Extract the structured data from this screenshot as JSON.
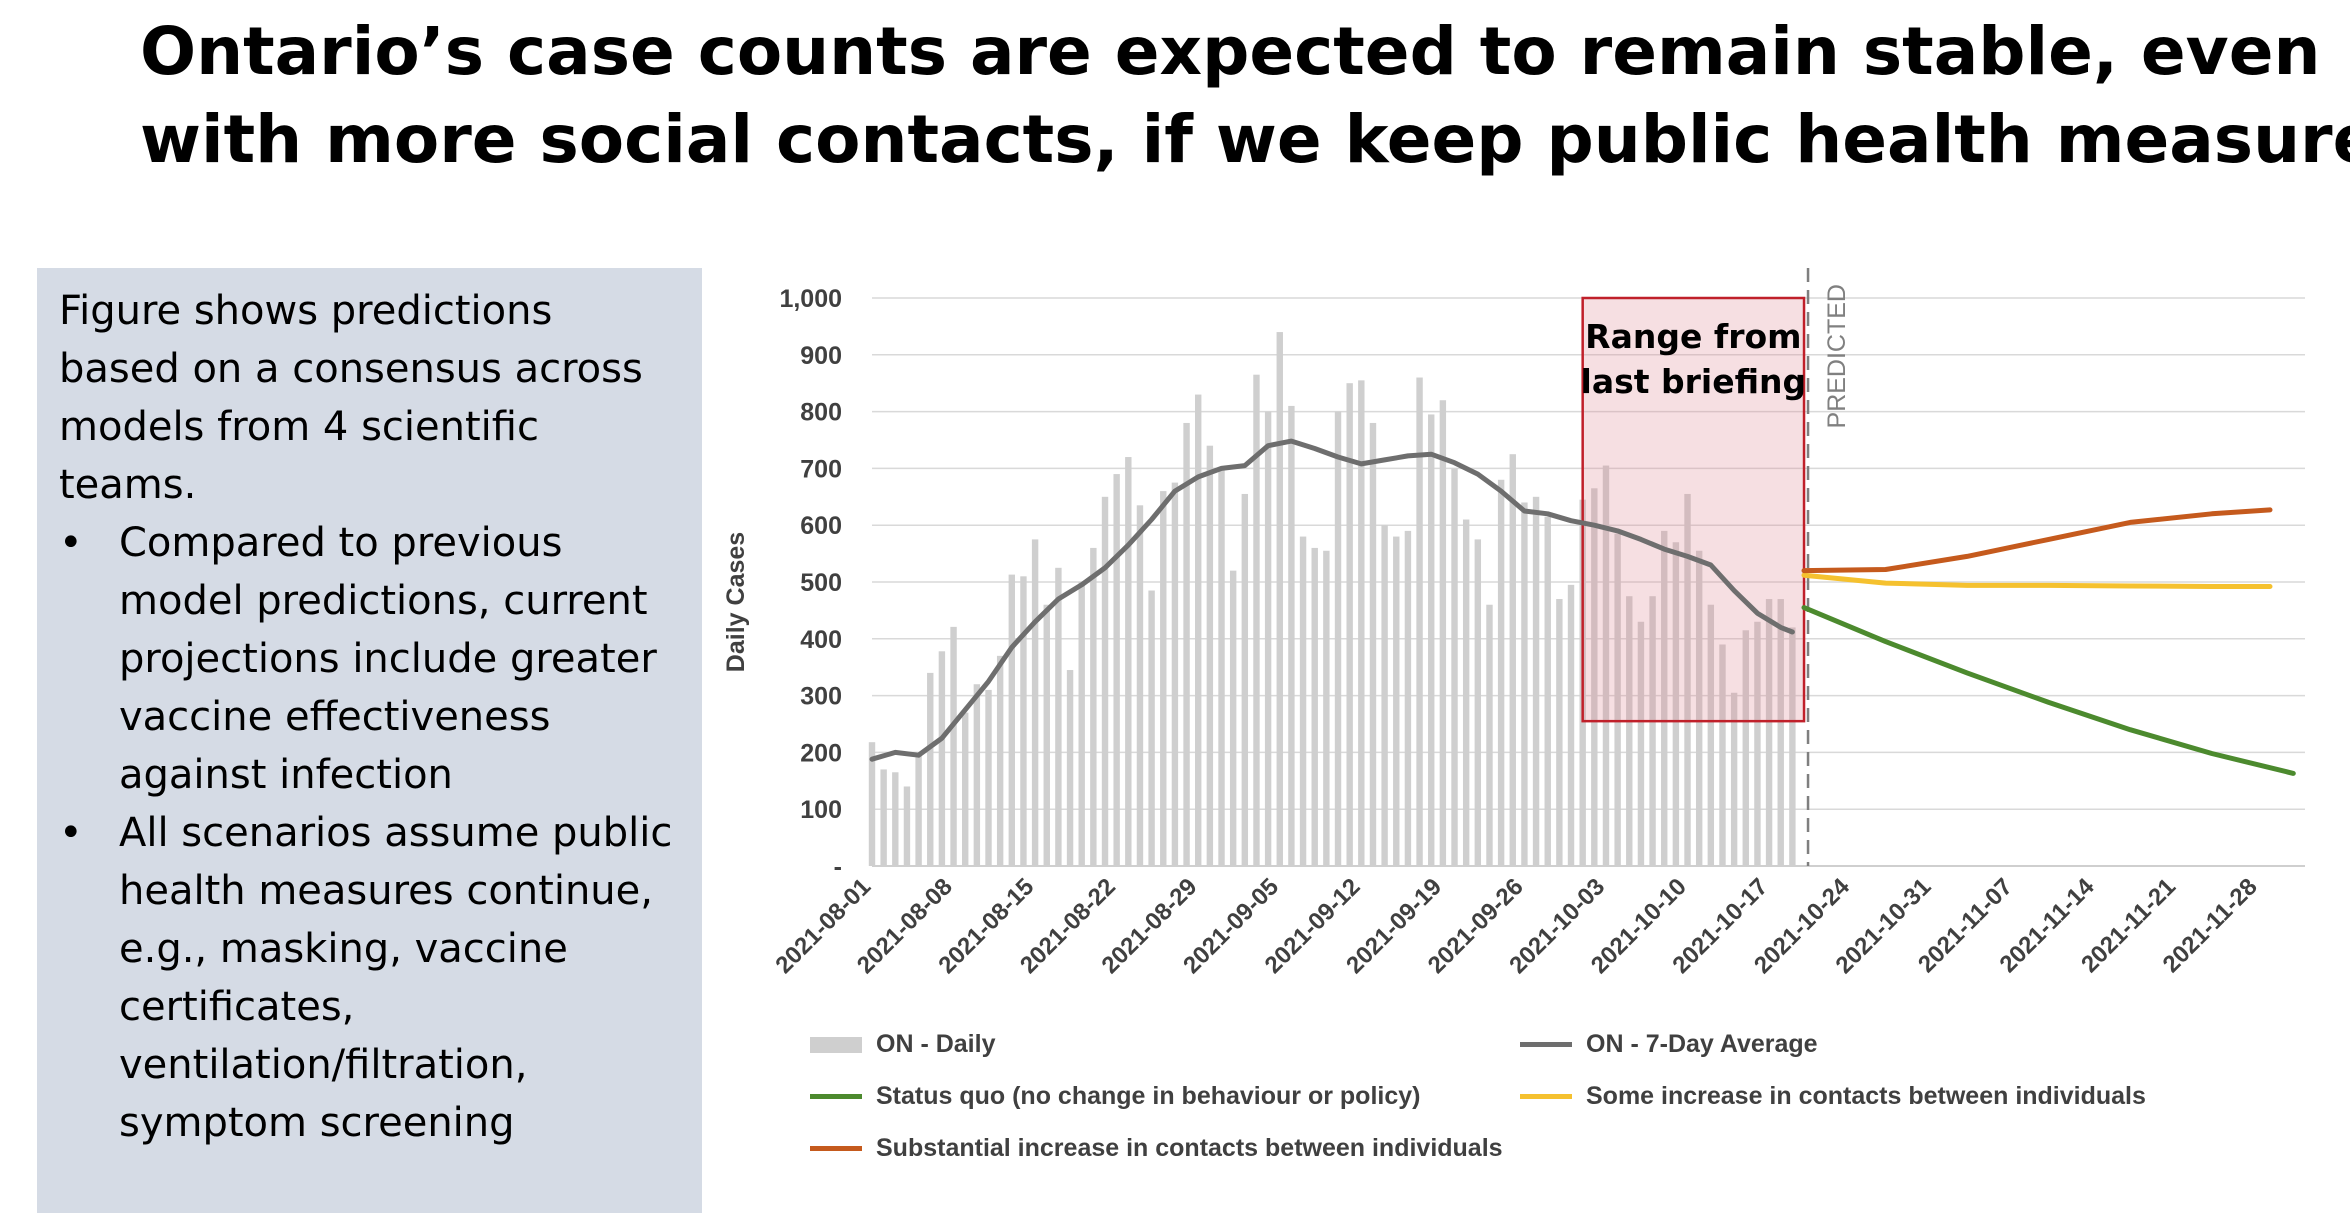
{
  "slide": {
    "title_line1": "Ontario’s case counts are expected to remain stable, even",
    "title_line2": "with more social contacts, if we keep public health measures"
  },
  "info": {
    "intro": "Figure shows predictions based on a consensus across models from 4 scientific teams.",
    "bullet_symbol": "•",
    "bullets": [
      "Compared to previous model predictions, current projections include greater vaccine effectiveness against infection",
      "All scenarios assume public health measures continue, e.g., masking, vaccine certificates, ventilation/filtration, symptom screening"
    ]
  },
  "chart_data": {
    "type": "bar",
    "ylabel": "Daily Cases",
    "xlabel": "",
    "ylim": [
      0,
      1000
    ],
    "yticks": [
      0,
      100,
      200,
      300,
      400,
      500,
      600,
      700,
      800,
      900,
      1000
    ],
    "ytick_labels": [
      "-",
      "100",
      "200",
      "300",
      "400",
      "500",
      "600",
      "700",
      "800",
      "900",
      "1,000"
    ],
    "x_start": "2021-08-01",
    "x_end": "2021-12-02",
    "xtick_labels": [
      "2021-08-01",
      "2021-08-08",
      "2021-08-15",
      "2021-08-22",
      "2021-08-29",
      "2021-09-05",
      "2021-09-12",
      "2021-09-19",
      "2021-09-26",
      "2021-10-03",
      "2021-10-10",
      "2021-10-17",
      "2021-10-24",
      "2021-10-31",
      "2021-11-07",
      "2021-11-14",
      "2021-11-21",
      "2021-11-28"
    ],
    "grid": true,
    "predicted_label": "PREDICTED",
    "predicted_start": "2021-10-20",
    "range_box": {
      "label_line1": "Range from",
      "label_line2": "last briefing",
      "x_start": "2021-10-01",
      "x_end": "2021-10-20",
      "y_low": 255,
      "y_high": 1000
    },
    "legend": [
      {
        "label": "ON - Daily",
        "kind": "bar",
        "color": "#cfcfcf"
      },
      {
        "label": "ON - 7-Day Average",
        "kind": "line",
        "color": "#6e6e6e"
      },
      {
        "label": "Status quo (no change in behaviour or policy)",
        "kind": "line",
        "color": "#4c8a2e"
      },
      {
        "label": "Some increase in contacts between individuals",
        "kind": "line",
        "color": "#f5c12f"
      },
      {
        "label": "Substantial increase in contacts between individuals",
        "kind": "line",
        "color": "#c55a1d"
      }
    ],
    "daily": {
      "name": "ON - Daily",
      "color": "#cfcfcf",
      "x": [
        "2021-08-01",
        "2021-08-02",
        "2021-08-03",
        "2021-08-04",
        "2021-08-05",
        "2021-08-06",
        "2021-08-07",
        "2021-08-08",
        "2021-08-09",
        "2021-08-10",
        "2021-08-11",
        "2021-08-12",
        "2021-08-13",
        "2021-08-14",
        "2021-08-15",
        "2021-08-16",
        "2021-08-17",
        "2021-08-18",
        "2021-08-19",
        "2021-08-20",
        "2021-08-21",
        "2021-08-22",
        "2021-08-23",
        "2021-08-24",
        "2021-08-25",
        "2021-08-26",
        "2021-08-27",
        "2021-08-28",
        "2021-08-29",
        "2021-08-30",
        "2021-08-31",
        "2021-09-01",
        "2021-09-02",
        "2021-09-03",
        "2021-09-04",
        "2021-09-05",
        "2021-09-06",
        "2021-09-07",
        "2021-09-08",
        "2021-09-09",
        "2021-09-10",
        "2021-09-11",
        "2021-09-12",
        "2021-09-13",
        "2021-09-14",
        "2021-09-15",
        "2021-09-16",
        "2021-09-17",
        "2021-09-18",
        "2021-09-19",
        "2021-09-20",
        "2021-09-21",
        "2021-09-22",
        "2021-09-23",
        "2021-09-24",
        "2021-09-25",
        "2021-09-26",
        "2021-09-27",
        "2021-09-28",
        "2021-09-29",
        "2021-09-30",
        "2021-10-01",
        "2021-10-02",
        "2021-10-03",
        "2021-10-04",
        "2021-10-05",
        "2021-10-06",
        "2021-10-07",
        "2021-10-08",
        "2021-10-09",
        "2021-10-10",
        "2021-10-11",
        "2021-10-12",
        "2021-10-13",
        "2021-10-14",
        "2021-10-15",
        "2021-10-16",
        "2021-10-17",
        "2021-10-18",
        "2021-10-19"
      ],
      "values": [
        218,
        170,
        165,
        140,
        195,
        340,
        378,
        421,
        270,
        320,
        310,
        370,
        513,
        510,
        575,
        460,
        525,
        345,
        500,
        560,
        650,
        690,
        720,
        635,
        485,
        660,
        675,
        780,
        830,
        740,
        700,
        520,
        655,
        865,
        800,
        940,
        810,
        580,
        560,
        555,
        800,
        850,
        855,
        780,
        600,
        580,
        590,
        860,
        795,
        820,
        700,
        610,
        575,
        460,
        680,
        725,
        640,
        650,
        615,
        470,
        495,
        645,
        665,
        705,
        585,
        475,
        430,
        475,
        590,
        570,
        655,
        555,
        460,
        390,
        305,
        415,
        430,
        470,
        470,
        420
      ]
    },
    "series": [
      {
        "name": "ON - 7-Day Average",
        "color": "#6e6e6e",
        "x": [
          "2021-08-01",
          "2021-08-03",
          "2021-08-05",
          "2021-08-07",
          "2021-08-09",
          "2021-08-11",
          "2021-08-13",
          "2021-08-15",
          "2021-08-17",
          "2021-08-19",
          "2021-08-21",
          "2021-08-23",
          "2021-08-25",
          "2021-08-27",
          "2021-08-29",
          "2021-08-31",
          "2021-09-02",
          "2021-09-04",
          "2021-09-06",
          "2021-09-08",
          "2021-09-10",
          "2021-09-12",
          "2021-09-14",
          "2021-09-16",
          "2021-09-18",
          "2021-09-20",
          "2021-09-22",
          "2021-09-24",
          "2021-09-26",
          "2021-09-28",
          "2021-09-30",
          "2021-10-02",
          "2021-10-04",
          "2021-10-06",
          "2021-10-08",
          "2021-10-10",
          "2021-10-12",
          "2021-10-14",
          "2021-10-16",
          "2021-10-18",
          "2021-10-19"
        ],
        "values": [
          188,
          200,
          195,
          225,
          275,
          325,
          385,
          430,
          470,
          495,
          525,
          565,
          610,
          660,
          685,
          700,
          705,
          740,
          748,
          735,
          720,
          708,
          715,
          722,
          725,
          710,
          690,
          660,
          625,
          620,
          608,
          600,
          590,
          575,
          558,
          545,
          530,
          485,
          445,
          420,
          412
        ]
      },
      {
        "name": "Status quo (no change in behaviour or policy)",
        "color": "#4c8a2e",
        "x": [
          "2021-10-20",
          "2021-10-27",
          "2021-11-03",
          "2021-11-10",
          "2021-11-17",
          "2021-11-24",
          "2021-12-01"
        ],
        "values": [
          455,
          395,
          340,
          288,
          240,
          198,
          163
        ]
      },
      {
        "name": "Some increase in contacts between individuals",
        "color": "#f5c12f",
        "x": [
          "2021-10-20",
          "2021-10-27",
          "2021-11-03",
          "2021-11-10",
          "2021-11-17",
          "2021-11-24",
          "2021-11-29"
        ],
        "values": [
          512,
          498,
          494,
          494,
          493,
          492,
          492
        ]
      },
      {
        "name": "Substantial increase in contacts between individuals",
        "color": "#c55a1d",
        "x": [
          "2021-10-20",
          "2021-10-27",
          "2021-11-03",
          "2021-11-10",
          "2021-11-17",
          "2021-11-24",
          "2021-11-29"
        ],
        "values": [
          520,
          522,
          545,
          575,
          605,
          620,
          627
        ]
      }
    ]
  }
}
